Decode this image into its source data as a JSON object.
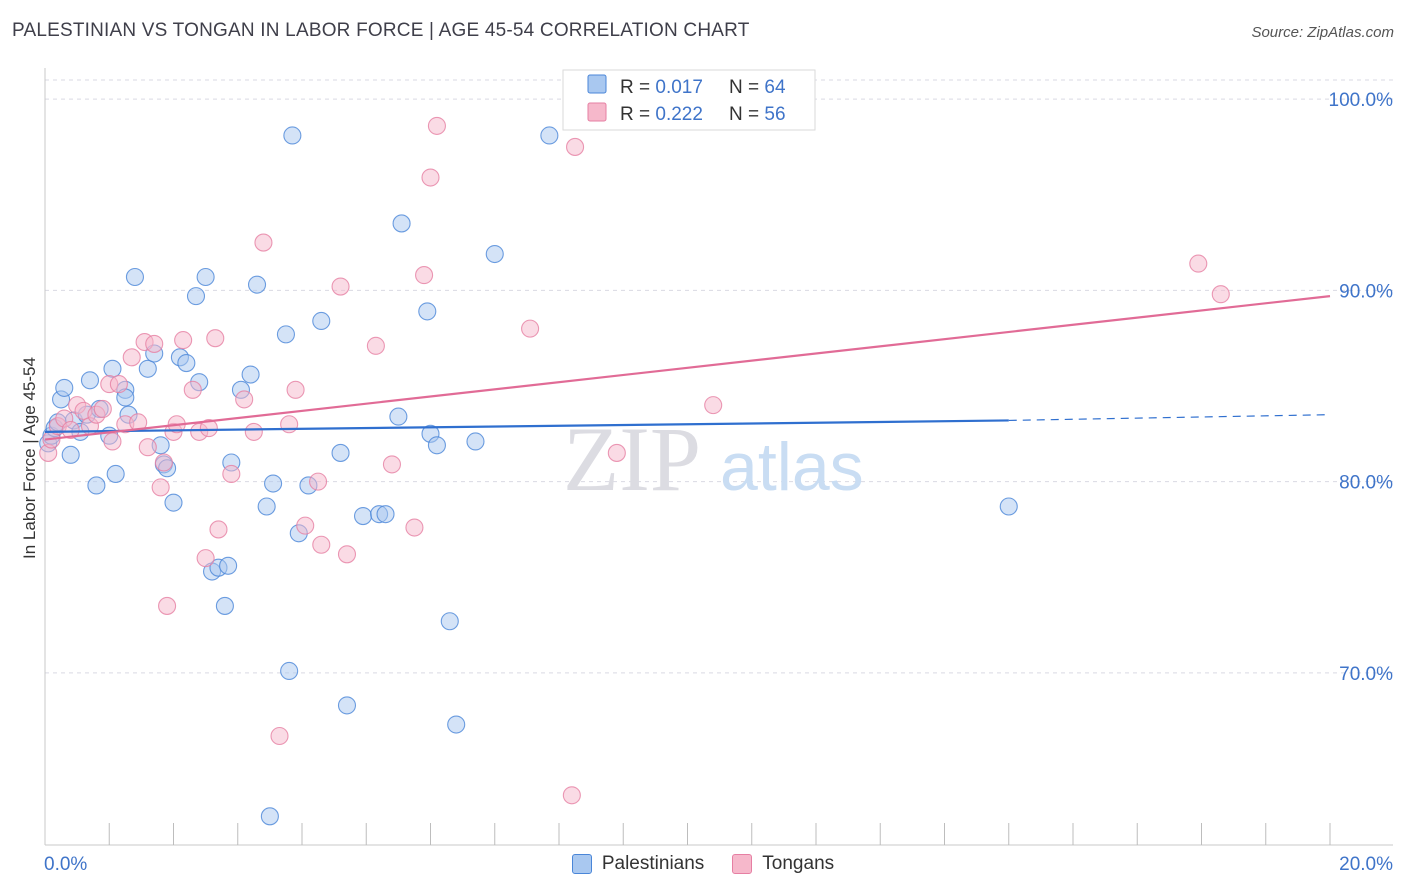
{
  "title": "PALESTINIAN VS TONGAN IN LABOR FORCE | AGE 45-54 CORRELATION CHART",
  "source": "Source: ZipAtlas.com",
  "colors": {
    "blue_fill": "#a9c8f0",
    "blue_stroke": "#4a86d8",
    "blue_line": "#2f6fcf",
    "pink_fill": "#f6b8cb",
    "pink_stroke": "#e67fa3",
    "pink_line": "#e16b96",
    "axis_text": "#3f74c9",
    "grid": "#d9d9e3"
  },
  "legend": {
    "series": [
      {
        "r_label": "R = ",
        "r_value": "0.017",
        "n_label": "N = ",
        "n_value": "64"
      },
      {
        "r_label": "R = ",
        "r_value": "0.222",
        "n_label": "N = ",
        "n_value": "56"
      }
    ]
  },
  "bottom_legend": [
    "Palestinians",
    "Tongans"
  ],
  "watermark": {
    "zip": "ZIP",
    "atlas": "atlas"
  },
  "chart_data": {
    "type": "scatter",
    "title": "PALESTINIAN VS TONGAN IN LABOR FORCE | AGE 45-54 CORRELATION CHART",
    "xlabel": "",
    "ylabel": "In Labor Force | Age 45-54",
    "xlim": [
      0,
      20
    ],
    "ylim": [
      61,
      101
    ],
    "x_tick_labels": {
      "left": "0.0%",
      "right": "20.0%"
    },
    "y_ticks": [
      {
        "value": 100,
        "label": "100.0%"
      },
      {
        "value": 90,
        "label": "90.0%"
      },
      {
        "value": 80,
        "label": "80.0%"
      },
      {
        "value": 70,
        "label": "70.0%"
      }
    ],
    "series": [
      {
        "name": "Palestinians",
        "R": 0.017,
        "N": 64,
        "trend": {
          "x0": 0,
          "y0": 82.6,
          "x1": 15.0,
          "y1": 83.2,
          "dash_to_x": 20.0,
          "dash_to_y": 83.5
        },
        "points": [
          [
            0.05,
            82.0
          ],
          [
            0.1,
            82.4
          ],
          [
            0.15,
            82.8
          ],
          [
            0.2,
            83.1
          ],
          [
            0.25,
            84.3
          ],
          [
            0.3,
            84.9
          ],
          [
            0.4,
            81.4
          ],
          [
            0.45,
            83.2
          ],
          [
            0.55,
            82.6
          ],
          [
            0.65,
            83.5
          ],
          [
            0.7,
            85.3
          ],
          [
            0.8,
            79.8
          ],
          [
            0.85,
            83.8
          ],
          [
            1.0,
            82.4
          ],
          [
            1.05,
            85.9
          ],
          [
            1.1,
            80.4
          ],
          [
            1.25,
            84.8
          ],
          [
            1.25,
            84.4
          ],
          [
            1.3,
            83.5
          ],
          [
            1.4,
            90.7
          ],
          [
            1.6,
            85.9
          ],
          [
            1.7,
            86.7
          ],
          [
            1.8,
            81.9
          ],
          [
            1.85,
            80.9
          ],
          [
            1.9,
            80.7
          ],
          [
            2.0,
            78.9
          ],
          [
            2.1,
            86.5
          ],
          [
            2.2,
            86.2
          ],
          [
            2.35,
            89.7
          ],
          [
            2.4,
            85.2
          ],
          [
            2.5,
            90.7
          ],
          [
            2.6,
            75.3
          ],
          [
            2.7,
            75.5
          ],
          [
            2.8,
            73.5
          ],
          [
            2.85,
            75.6
          ],
          [
            2.9,
            81.0
          ],
          [
            3.05,
            84.8
          ],
          [
            3.2,
            85.6
          ],
          [
            3.3,
            90.3
          ],
          [
            3.45,
            78.7
          ],
          [
            3.5,
            62.5
          ],
          [
            3.55,
            79.9
          ],
          [
            3.75,
            87.7
          ],
          [
            3.8,
            70.1
          ],
          [
            3.85,
            98.1
          ],
          [
            3.95,
            77.3
          ],
          [
            4.1,
            79.8
          ],
          [
            4.3,
            88.4
          ],
          [
            4.6,
            81.5
          ],
          [
            4.7,
            68.3
          ],
          [
            4.95,
            78.2
          ],
          [
            5.2,
            78.3
          ],
          [
            5.3,
            78.3
          ],
          [
            5.5,
            83.4
          ],
          [
            5.55,
            93.5
          ],
          [
            5.95,
            88.9
          ],
          [
            6.0,
            82.5
          ],
          [
            6.1,
            81.9
          ],
          [
            6.3,
            72.7
          ],
          [
            6.4,
            67.3
          ],
          [
            6.7,
            82.1
          ],
          [
            7.0,
            91.9
          ],
          [
            7.85,
            98.1
          ],
          [
            15.0,
            78.7
          ]
        ]
      },
      {
        "name": "Tongans",
        "R": 0.222,
        "N": 56,
        "trend": {
          "x0": 0,
          "y0": 82.2,
          "x1": 20.0,
          "y1": 89.7
        },
        "points": [
          [
            0.05,
            81.5
          ],
          [
            0.1,
            82.2
          ],
          [
            0.2,
            82.9
          ],
          [
            0.3,
            83.3
          ],
          [
            0.4,
            82.7
          ],
          [
            0.5,
            84.0
          ],
          [
            0.6,
            83.7
          ],
          [
            0.7,
            82.9
          ],
          [
            0.8,
            83.5
          ],
          [
            0.9,
            83.8
          ],
          [
            1.0,
            85.1
          ],
          [
            1.05,
            82.1
          ],
          [
            1.15,
            85.1
          ],
          [
            1.25,
            83.0
          ],
          [
            1.35,
            86.5
          ],
          [
            1.45,
            83.1
          ],
          [
            1.55,
            87.3
          ],
          [
            1.6,
            81.8
          ],
          [
            1.7,
            87.2
          ],
          [
            1.8,
            79.7
          ],
          [
            1.85,
            81.0
          ],
          [
            1.9,
            73.5
          ],
          [
            2.0,
            82.6
          ],
          [
            2.05,
            83.0
          ],
          [
            2.15,
            87.4
          ],
          [
            2.3,
            84.8
          ],
          [
            2.4,
            82.6
          ],
          [
            2.5,
            76.0
          ],
          [
            2.55,
            82.8
          ],
          [
            2.65,
            87.5
          ],
          [
            2.7,
            77.5
          ],
          [
            2.9,
            80.4
          ],
          [
            3.1,
            84.3
          ],
          [
            3.25,
            82.6
          ],
          [
            3.4,
            92.5
          ],
          [
            3.65,
            66.7
          ],
          [
            3.8,
            83.0
          ],
          [
            3.9,
            84.8
          ],
          [
            4.05,
            77.7
          ],
          [
            4.25,
            80.0
          ],
          [
            4.3,
            76.7
          ],
          [
            4.6,
            90.2
          ],
          [
            4.7,
            76.2
          ],
          [
            5.15,
            87.1
          ],
          [
            5.4,
            80.9
          ],
          [
            5.75,
            77.6
          ],
          [
            5.9,
            90.8
          ],
          [
            6.0,
            95.9
          ],
          [
            6.1,
            98.6
          ],
          [
            7.55,
            88.0
          ],
          [
            8.2,
            63.6
          ],
          [
            8.25,
            97.5
          ],
          [
            8.9,
            81.5
          ],
          [
            10.4,
            84.0
          ],
          [
            17.95,
            91.4
          ],
          [
            18.3,
            89.8
          ]
        ]
      }
    ]
  }
}
